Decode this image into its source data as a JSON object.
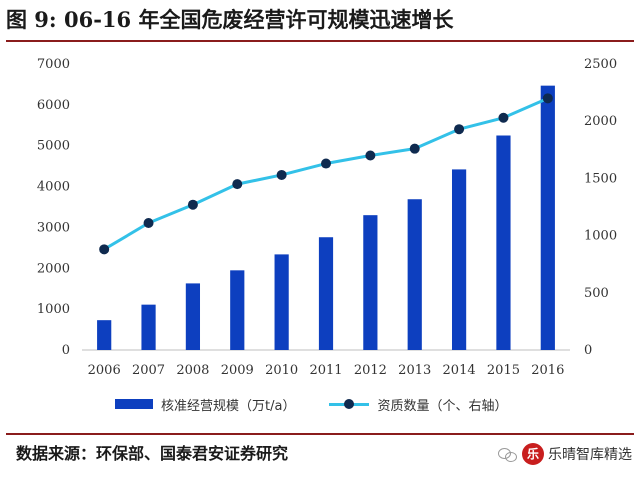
{
  "title": "图 9:  06-16 年全国危废经营许可规模迅速增长",
  "source": "数据来源：环保部、国泰君安证券研究",
  "brand": {
    "logo_char": "乐",
    "text": "乐晴智库精选"
  },
  "chart_data": {
    "type": "bar+line",
    "categories": [
      "2006",
      "2007",
      "2008",
      "2009",
      "2010",
      "2011",
      "2012",
      "2013",
      "2014",
      "2015",
      "2016"
    ],
    "series": [
      {
        "name": "核准经营规模（万t/a）",
        "type": "bar",
        "axis": "left",
        "color": "#0d3fbf",
        "values": [
          730,
          1110,
          1630,
          1950,
          2340,
          2760,
          3300,
          3690,
          4420,
          5250,
          6470
        ]
      },
      {
        "name": "资质数量（个、右轴）",
        "type": "line",
        "axis": "right",
        "color": "#33c1e8",
        "marker_color": "#0f2a4f",
        "values": [
          880,
          1110,
          1270,
          1450,
          1530,
          1630,
          1700,
          1760,
          1930,
          2030,
          2200
        ]
      }
    ],
    "left_axis": {
      "min": 0,
      "max": 7000,
      "ticks": [
        0,
        1000,
        2000,
        3000,
        4000,
        5000,
        6000,
        7000
      ]
    },
    "right_axis": {
      "min": 0,
      "max": 2500,
      "ticks": [
        0,
        500,
        1000,
        1500,
        2000,
        2500
      ]
    },
    "grid": false,
    "legend_position": "bottom"
  }
}
